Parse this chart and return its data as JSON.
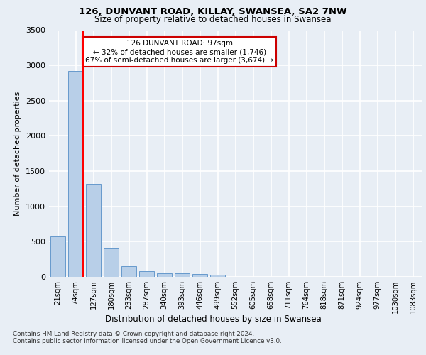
{
  "title_line1": "126, DUNVANT ROAD, KILLAY, SWANSEA, SA2 7NW",
  "title_line2": "Size of property relative to detached houses in Swansea",
  "xlabel": "Distribution of detached houses by size in Swansea",
  "ylabel": "Number of detached properties",
  "bar_labels": [
    "21sqm",
    "74sqm",
    "127sqm",
    "180sqm",
    "233sqm",
    "287sqm",
    "340sqm",
    "393sqm",
    "446sqm",
    "499sqm",
    "552sqm",
    "605sqm",
    "658sqm",
    "711sqm",
    "764sqm",
    "818sqm",
    "871sqm",
    "924sqm",
    "977sqm",
    "1030sqm",
    "1083sqm"
  ],
  "bar_values": [
    570,
    2920,
    1320,
    410,
    155,
    80,
    55,
    50,
    45,
    30,
    0,
    0,
    0,
    0,
    0,
    0,
    0,
    0,
    0,
    0,
    0
  ],
  "bar_color": "#b8cfe8",
  "bar_edge_color": "#6699cc",
  "red_line_x": 1,
  "annotation_text": "126 DUNVANT ROAD: 97sqm\n← 32% of detached houses are smaller (1,746)\n67% of semi-detached houses are larger (3,674) →",
  "annotation_box_color": "#ffffff",
  "annotation_box_edge_color": "#cc0000",
  "ylim": [
    0,
    3500
  ],
  "yticks": [
    0,
    500,
    1000,
    1500,
    2000,
    2500,
    3000,
    3500
  ],
  "footer_line1": "Contains HM Land Registry data © Crown copyright and database right 2024.",
  "footer_line2": "Contains public sector information licensed under the Open Government Licence v3.0.",
  "background_color": "#e8eef5",
  "grid_color": "#ffffff"
}
